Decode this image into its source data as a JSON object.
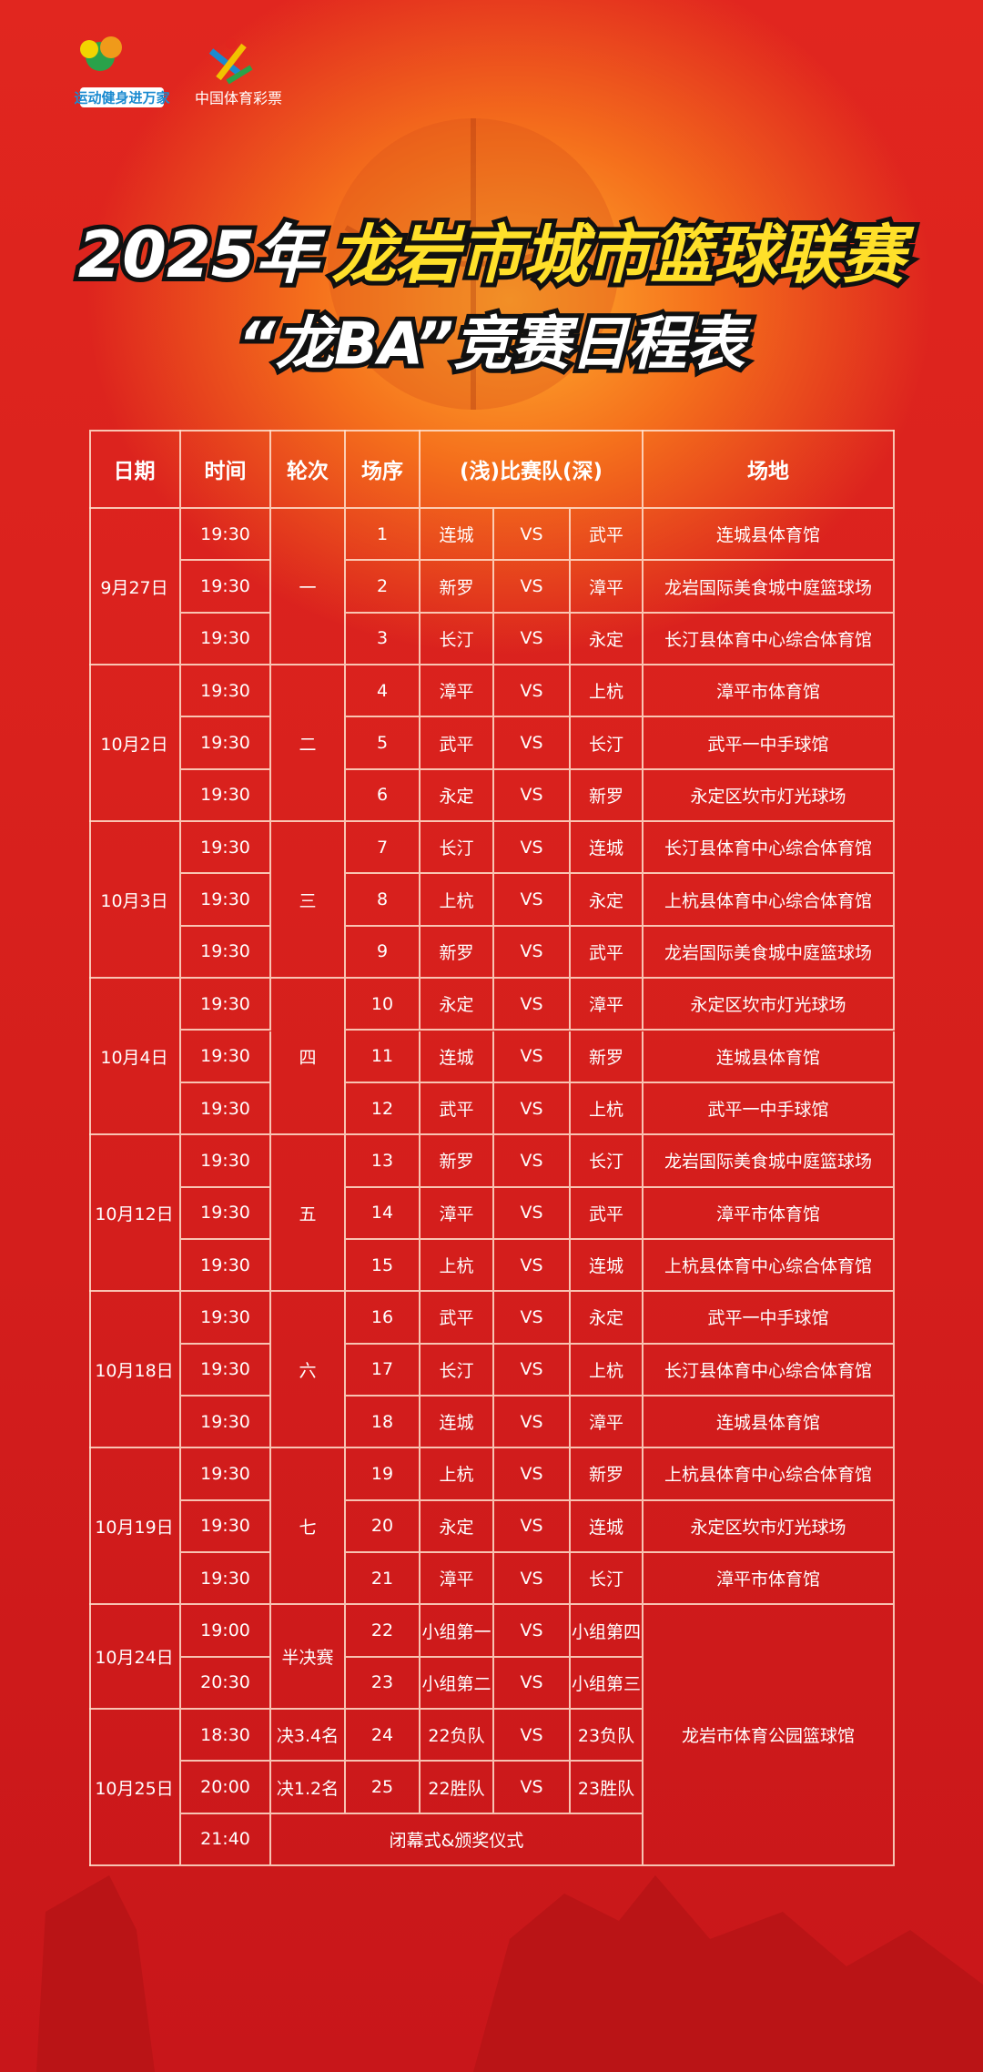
{
  "logos": {
    "left": "运动健身进万家",
    "right": "中国体育彩票"
  },
  "title": {
    "year": "2025年",
    "name": "龙岩市城市篮球联赛",
    "subtitle": "“龙BA”竞赛日程表"
  },
  "table": {
    "header": [
      "日期",
      "时间",
      "轮次",
      "场序",
      "(浅)比赛队(深)",
      "场地"
    ],
    "days": [
      {
        "date": "9月27日",
        "round": "一",
        "rows": [
          {
            "time": "19:30",
            "no": "1",
            "home": "连城",
            "vs": "VS",
            "away": "武平",
            "venue": "连城县体育馆"
          },
          {
            "time": "19:30",
            "no": "2",
            "home": "新罗",
            "vs": "VS",
            "away": "漳平",
            "venue": "龙岩国际美食城中庭篮球场"
          },
          {
            "time": "19:30",
            "no": "3",
            "home": "长汀",
            "vs": "VS",
            "away": "永定",
            "venue": "长汀县体育中心综合体育馆"
          }
        ]
      },
      {
        "date": "10月2日",
        "round": "二",
        "rows": [
          {
            "time": "19:30",
            "no": "4",
            "home": "漳平",
            "vs": "VS",
            "away": "上杭",
            "venue": "漳平市体育馆"
          },
          {
            "time": "19:30",
            "no": "5",
            "home": "武平",
            "vs": "VS",
            "away": "长汀",
            "venue": "武平一中手球馆"
          },
          {
            "time": "19:30",
            "no": "6",
            "home": "永定",
            "vs": "VS",
            "away": "新罗",
            "venue": "永定区坎市灯光球场"
          }
        ]
      },
      {
        "date": "10月3日",
        "round": "三",
        "rows": [
          {
            "time": "19:30",
            "no": "7",
            "home": "长汀",
            "vs": "VS",
            "away": "连城",
            "venue": "长汀县体育中心综合体育馆"
          },
          {
            "time": "19:30",
            "no": "8",
            "home": "上杭",
            "vs": "VS",
            "away": "永定",
            "venue": "上杭县体育中心综合体育馆"
          },
          {
            "time": "19:30",
            "no": "9",
            "home": "新罗",
            "vs": "VS",
            "away": "武平",
            "venue": "龙岩国际美食城中庭篮球场"
          }
        ]
      },
      {
        "date": "10月4日",
        "round": "四",
        "rows": [
          {
            "time": "19:30",
            "no": "10",
            "home": "永定",
            "vs": "VS",
            "away": "漳平",
            "venue": "永定区坎市灯光球场"
          },
          {
            "time": "19:30",
            "no": "11",
            "home": "连城",
            "vs": "VS",
            "away": "新罗",
            "venue": "连城县体育馆"
          },
          {
            "time": "19:30",
            "no": "12",
            "home": "武平",
            "vs": "VS",
            "away": "上杭",
            "venue": "武平一中手球馆"
          }
        ]
      },
      {
        "date": "10月12日",
        "round": "五",
        "rows": [
          {
            "time": "19:30",
            "no": "13",
            "home": "新罗",
            "vs": "VS",
            "away": "长汀",
            "venue": "龙岩国际美食城中庭篮球场"
          },
          {
            "time": "19:30",
            "no": "14",
            "home": "漳平",
            "vs": "VS",
            "away": "武平",
            "venue": "漳平市体育馆"
          },
          {
            "time": "19:30",
            "no": "15",
            "home": "上杭",
            "vs": "VS",
            "away": "连城",
            "venue": "上杭县体育中心综合体育馆"
          }
        ]
      },
      {
        "date": "10月18日",
        "round": "六",
        "rows": [
          {
            "time": "19:30",
            "no": "16",
            "home": "武平",
            "vs": "VS",
            "away": "永定",
            "venue": "武平一中手球馆"
          },
          {
            "time": "19:30",
            "no": "17",
            "home": "长汀",
            "vs": "VS",
            "away": "上杭",
            "venue": "长汀县体育中心综合体育馆"
          },
          {
            "time": "19:30",
            "no": "18",
            "home": "连城",
            "vs": "VS",
            "away": "漳平",
            "venue": "连城县体育馆"
          }
        ]
      },
      {
        "date": "10月19日",
        "round": "七",
        "rows": [
          {
            "time": "19:30",
            "no": "19",
            "home": "上杭",
            "vs": "VS",
            "away": "新罗",
            "venue": "上杭县体育中心综合体育馆"
          },
          {
            "time": "19:30",
            "no": "20",
            "home": "永定",
            "vs": "VS",
            "away": "连城",
            "venue": "永定区坎市灯光球场"
          },
          {
            "time": "19:30",
            "no": "21",
            "home": "漳平",
            "vs": "VS",
            "away": "长汀",
            "venue": "漳平市体育馆"
          }
        ]
      },
      {
        "date": "10月24日",
        "round": "半决赛",
        "rows": [
          {
            "time": "19:00",
            "no": "22",
            "home": "小组第一",
            "vs": "VS",
            "away": "小组第四"
          },
          {
            "time": "20:30",
            "no": "23",
            "home": "小组第二",
            "vs": "VS",
            "away": "小组第三"
          }
        ]
      },
      {
        "date": "10月25日",
        "rows": [
          {
            "time": "18:30",
            "round": "决3.4名",
            "no": "24",
            "home": "22负队",
            "vs": "VS",
            "away": "23负队"
          },
          {
            "time": "20:00",
            "round": "决1.2名",
            "no": "25",
            "home": "22胜队",
            "vs": "VS",
            "away": "23胜队"
          },
          {
            "time": "21:40",
            "ceremony": "闭幕式&颁奖仪式"
          }
        ]
      }
    ],
    "final_venue": "龙岩市体育公园篮球馆"
  }
}
